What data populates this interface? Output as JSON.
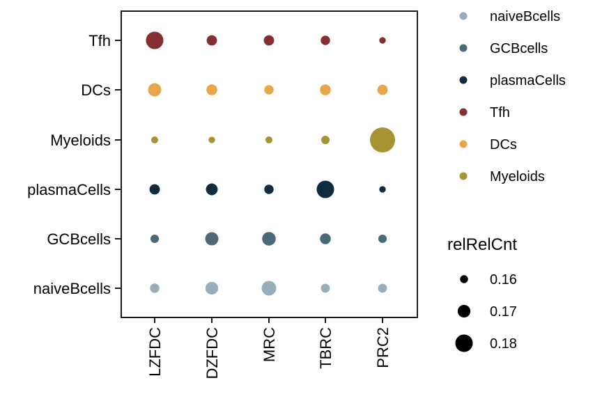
{
  "chart_data": {
    "type": "scatter",
    "subtype": "dot-plot",
    "x_categories": [
      "LZFDC",
      "DZFDC",
      "MRC",
      "TBRC",
      "PRC2"
    ],
    "y_categories": [
      "naiveBcells",
      "GCBcells",
      "plasmaCells",
      "Myeloids",
      "DCs",
      "Tfh"
    ],
    "series": [
      {
        "name": "naiveBcells",
        "color": "#96AEBB",
        "values": [
          0.163,
          0.17,
          0.174,
          0.162,
          0.162
        ]
      },
      {
        "name": "GCBcells",
        "color": "#4A6B76",
        "values": [
          0.161,
          0.171,
          0.172,
          0.166,
          0.161
        ]
      },
      {
        "name": "plasmaCells",
        "color": "#0F2C41",
        "values": [
          0.165,
          0.168,
          0.163,
          0.18,
          0.157
        ]
      },
      {
        "name": "Tfh",
        "color": "#843033",
        "values": [
          0.18,
          0.165,
          0.165,
          0.163,
          0.157
        ]
      },
      {
        "name": "DCs",
        "color": "#E7A649",
        "values": [
          0.171,
          0.166,
          0.163,
          0.166,
          0.165
        ]
      },
      {
        "name": "Myeloids",
        "color": "#A79334",
        "values": [
          0.158,
          0.157,
          0.158,
          0.161,
          0.196
        ]
      }
    ],
    "color_legend": {
      "title": "",
      "entries": [
        "naiveBcells",
        "GCBcells",
        "plasmaCells",
        "Tfh",
        "DCs",
        "Myeloids"
      ]
    },
    "size_legend": {
      "title": "relRelCnt",
      "labels": [
        "0.16",
        "0.17",
        "0.18"
      ],
      "values": [
        0.16,
        0.17,
        0.18
      ]
    },
    "size_range": [
      0.155,
      0.196
    ],
    "xlabel": "",
    "ylabel": "",
    "grid": false,
    "legend_position": "right"
  }
}
